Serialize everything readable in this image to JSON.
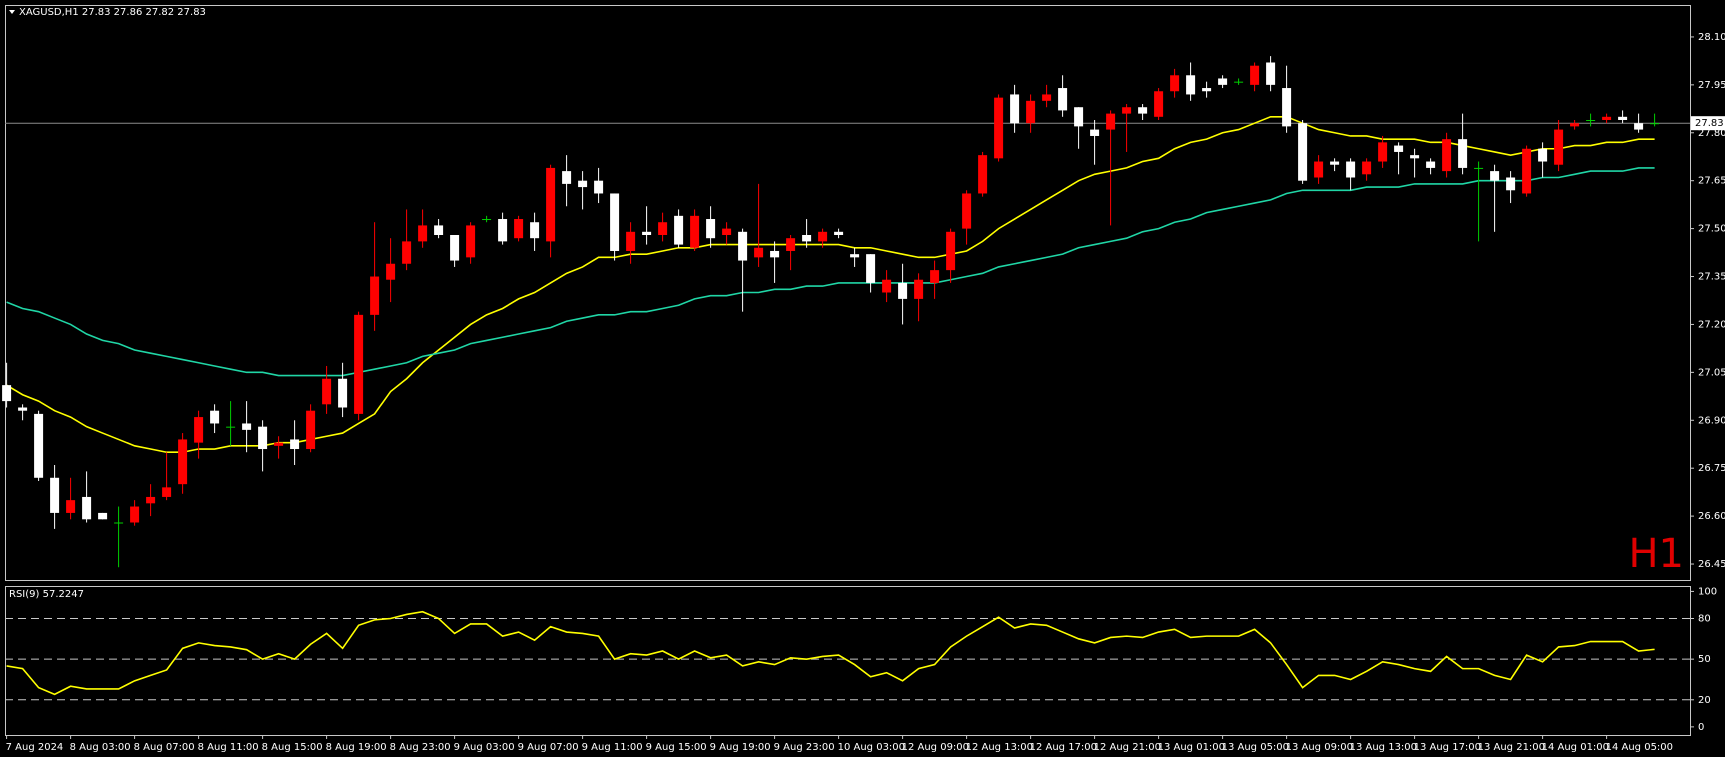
{
  "chart_data": [
    {
      "type": "candlestick",
      "title": "XAGUSD,H1  27.83 27.86 27.82 27.83",
      "annotation": "H1",
      "categories": [
        "7 Aug 2024",
        null,
        null,
        null,
        "8 Aug 03:00",
        null,
        null,
        null,
        "8 Aug 07:00",
        null,
        null,
        null,
        "8 Aug 11:00",
        null,
        null,
        null,
        "8 Aug 15:00",
        null,
        null,
        null,
        "8 Aug 19:00",
        null,
        null,
        null,
        "8 Aug 23:00",
        null,
        null,
        null,
        "9 Aug 03:00",
        null,
        null,
        null,
        "9 Aug 07:00",
        null,
        null,
        null,
        "9 Aug 11:00",
        null,
        null,
        null,
        "9 Aug 15:00",
        null,
        null,
        null,
        "9 Aug 19:00",
        null,
        null,
        null,
        "9 Aug 23:00",
        null,
        null,
        null,
        "10 Aug 03:00",
        null,
        null,
        null,
        "12 Aug 09:00",
        null,
        null,
        null,
        "12 Aug 13:00",
        null,
        null,
        null,
        "12 Aug 17:00",
        null,
        null,
        null,
        "12 Aug 21:00",
        null,
        null,
        null,
        "13 Aug 01:00",
        null,
        null,
        null,
        "13 Aug 05:00",
        null,
        null,
        null,
        "13 Aug 09:00",
        null,
        null,
        null,
        "13 Aug 13:00",
        null,
        null,
        null,
        "13 Aug 17:00",
        null,
        null,
        null,
        "13 Aug 21:00",
        null,
        null,
        null,
        "14 Aug 01:00",
        null,
        null,
        null,
        "14 Aug 05:00",
        null,
        null,
        null
      ],
      "open": [
        27.01,
        26.94,
        26.92,
        26.72,
        26.61,
        26.66,
        26.61,
        26.58,
        26.58,
        26.64,
        26.66,
        26.7,
        26.83,
        26.93,
        26.88,
        26.89,
        26.88,
        26.82,
        26.84,
        26.81,
        26.95,
        27.03,
        26.92,
        27.23,
        27.34,
        27.39,
        27.46,
        27.51,
        27.48,
        27.41,
        27.53,
        27.53,
        27.47,
        27.52,
        27.46,
        27.68,
        27.65,
        27.65,
        27.61,
        27.43,
        27.49,
        27.48,
        27.54,
        27.44,
        27.53,
        27.48,
        27.49,
        27.41,
        27.43,
        27.43,
        27.48,
        27.46,
        27.49,
        27.42,
        27.42,
        27.3,
        27.33,
        27.28,
        27.33,
        27.37,
        27.5,
        27.61,
        27.72,
        27.92,
        27.83,
        27.9,
        27.94,
        27.88,
        27.81,
        27.81,
        27.86,
        27.88,
        27.85,
        27.93,
        27.98,
        27.94,
        27.97,
        27.96,
        27.95,
        28.02,
        27.94,
        27.83,
        27.66,
        27.71,
        27.71,
        27.67,
        27.71,
        27.76,
        27.73,
        27.71,
        27.68,
        27.78,
        27.69,
        27.68,
        27.66,
        27.61,
        27.75,
        27.7,
        27.82,
        27.84,
        27.84,
        27.85,
        27.83,
        27.83
      ],
      "high": [
        27.08,
        26.95,
        26.93,
        26.76,
        26.72,
        26.74,
        26.61,
        26.63,
        26.65,
        26.7,
        26.8,
        26.86,
        26.93,
        26.95,
        26.96,
        26.96,
        26.9,
        26.85,
        26.9,
        26.95,
        27.07,
        27.08,
        27.24,
        27.52,
        27.47,
        27.56,
        27.56,
        27.53,
        27.48,
        27.52,
        27.54,
        27.55,
        27.54,
        27.55,
        27.7,
        27.73,
        27.68,
        27.69,
        27.61,
        27.52,
        27.57,
        27.55,
        27.56,
        27.56,
        27.57,
        27.52,
        27.5,
        27.64,
        27.46,
        27.48,
        27.53,
        27.5,
        27.5,
        27.44,
        27.42,
        27.37,
        27.39,
        27.36,
        27.4,
        27.5,
        27.62,
        27.74,
        27.92,
        27.95,
        27.92,
        27.95,
        27.98,
        27.88,
        27.84,
        27.87,
        27.89,
        27.89,
        27.94,
        28.0,
        28.02,
        27.96,
        27.98,
        27.97,
        28.02,
        28.04,
        28.01,
        27.84,
        27.73,
        27.72,
        27.72,
        27.72,
        27.79,
        27.77,
        27.75,
        27.72,
        27.8,
        27.86,
        27.71,
        27.7,
        27.68,
        27.76,
        27.77,
        27.84,
        27.84,
        27.86,
        27.86,
        27.87,
        27.86,
        27.86
      ],
      "low": [
        26.94,
        26.9,
        26.71,
        26.56,
        26.59,
        26.58,
        26.59,
        26.44,
        26.57,
        26.6,
        26.65,
        26.67,
        26.78,
        26.86,
        26.82,
        26.8,
        26.74,
        26.78,
        26.76,
        26.8,
        26.92,
        26.91,
        26.9,
        27.18,
        27.27,
        27.37,
        27.44,
        27.47,
        27.38,
        27.39,
        27.52,
        27.45,
        27.46,
        27.43,
        27.41,
        27.57,
        27.56,
        27.58,
        27.4,
        27.39,
        27.45,
        27.46,
        27.44,
        27.43,
        27.44,
        27.45,
        27.24,
        27.38,
        27.33,
        27.37,
        27.44,
        27.44,
        27.47,
        27.38,
        27.3,
        27.27,
        27.2,
        27.21,
        27.28,
        27.33,
        27.45,
        27.6,
        27.71,
        27.8,
        27.8,
        27.88,
        27.85,
        27.75,
        27.7,
        27.51,
        27.74,
        27.84,
        27.84,
        27.91,
        27.9,
        27.91,
        27.94,
        27.95,
        27.93,
        27.93,
        27.8,
        27.64,
        27.64,
        27.68,
        27.62,
        27.65,
        27.69,
        27.67,
        27.66,
        27.67,
        27.66,
        27.67,
        27.46,
        27.49,
        27.58,
        27.6,
        27.66,
        27.68,
        27.81,
        27.82,
        27.83,
        27.83,
        27.8,
        27.82
      ],
      "close": [
        26.96,
        26.93,
        26.72,
        26.61,
        26.65,
        26.59,
        26.59,
        26.58,
        26.63,
        26.66,
        26.69,
        26.84,
        26.91,
        26.89,
        26.88,
        26.87,
        26.81,
        26.83,
        26.81,
        26.93,
        27.03,
        26.94,
        27.23,
        27.35,
        27.39,
        27.46,
        27.51,
        27.48,
        27.4,
        27.51,
        27.53,
        27.46,
        27.53,
        27.47,
        27.69,
        27.64,
        27.63,
        27.61,
        27.43,
        27.49,
        27.48,
        27.52,
        27.45,
        27.54,
        27.47,
        27.5,
        27.4,
        27.44,
        27.41,
        27.47,
        27.46,
        27.49,
        27.48,
        27.41,
        27.33,
        27.34,
        27.28,
        27.34,
        27.37,
        27.49,
        27.61,
        27.73,
        27.91,
        27.83,
        27.9,
        27.92,
        27.87,
        27.82,
        27.79,
        27.86,
        27.88,
        27.86,
        27.93,
        27.98,
        27.92,
        27.93,
        27.95,
        27.96,
        28.01,
        27.95,
        27.82,
        27.65,
        27.71,
        27.7,
        27.66,
        27.71,
        27.77,
        27.74,
        27.72,
        27.69,
        27.78,
        27.69,
        27.69,
        27.65,
        27.62,
        27.75,
        27.71,
        27.81,
        27.83,
        27.84,
        27.85,
        27.84,
        27.81,
        27.83
      ],
      "up_color": "#ff0000",
      "down_color": "#ffffff",
      "doji_color": "#00d000",
      "overlays": [
        {
          "color": "#ffff00",
          "values": [
            27.01,
            26.98,
            26.96,
            26.93,
            26.91,
            26.88,
            26.86,
            26.84,
            26.82,
            26.81,
            26.8,
            26.8,
            26.81,
            26.81,
            26.82,
            26.82,
            26.82,
            26.83,
            26.83,
            26.84,
            26.85,
            26.86,
            26.89,
            26.92,
            26.99,
            27.03,
            27.08,
            27.12,
            27.16,
            27.2,
            27.23,
            27.25,
            27.28,
            27.3,
            27.33,
            27.36,
            27.38,
            27.41,
            27.41,
            27.42,
            27.42,
            27.43,
            27.44,
            27.44,
            27.45,
            27.45,
            27.45,
            27.45,
            27.45,
            27.45,
            27.45,
            27.45,
            27.45,
            27.44,
            27.44,
            27.43,
            27.42,
            27.41,
            27.41,
            27.42,
            27.43,
            27.46,
            27.5,
            27.53,
            27.56,
            27.59,
            27.62,
            27.65,
            27.67,
            27.68,
            27.69,
            27.71,
            27.72,
            27.75,
            27.77,
            27.78,
            27.8,
            27.81,
            27.83,
            27.85,
            27.85,
            27.83,
            27.81,
            27.8,
            27.79,
            27.79,
            27.78,
            27.78,
            27.78,
            27.77,
            27.77,
            27.76,
            27.75,
            27.74,
            27.73,
            27.74,
            27.75,
            27.75,
            27.76,
            27.76,
            27.77,
            27.77,
            27.78,
            27.78
          ]
        },
        {
          "color": "#20d6a6",
          "values": [
            27.27,
            27.25,
            27.24,
            27.22,
            27.2,
            27.17,
            27.15,
            27.14,
            27.12,
            27.11,
            27.1,
            27.09,
            27.08,
            27.07,
            27.06,
            27.05,
            27.05,
            27.04,
            27.04,
            27.04,
            27.04,
            27.04,
            27.05,
            27.06,
            27.07,
            27.08,
            27.1,
            27.11,
            27.12,
            27.14,
            27.15,
            27.16,
            27.17,
            27.18,
            27.19,
            27.21,
            27.22,
            27.23,
            27.23,
            27.24,
            27.24,
            27.25,
            27.26,
            27.28,
            27.29,
            27.29,
            27.3,
            27.3,
            27.31,
            27.31,
            27.32,
            27.32,
            27.33,
            27.33,
            27.33,
            27.33,
            27.33,
            27.33,
            27.33,
            27.34,
            27.35,
            27.36,
            27.38,
            27.39,
            27.4,
            27.41,
            27.42,
            27.44,
            27.45,
            27.46,
            27.47,
            27.49,
            27.5,
            27.52,
            27.53,
            27.55,
            27.56,
            27.57,
            27.58,
            27.59,
            27.61,
            27.62,
            27.62,
            27.62,
            27.62,
            27.63,
            27.63,
            27.63,
            27.64,
            27.64,
            27.64,
            27.64,
            27.65,
            27.65,
            27.65,
            27.65,
            27.66,
            27.66,
            27.67,
            27.68,
            27.68,
            27.68,
            27.69,
            27.69
          ]
        }
      ],
      "last_price": 27.83,
      "ylim": [
        26.4,
        28.2
      ],
      "yticks": [
        {
          "value": 28.1,
          "label": "28.10"
        },
        27.95,
        {
          "value": 27.8,
          "label": "27.80"
        },
        27.65,
        {
          "value": 27.5,
          "label": "27.50"
        },
        27.35,
        {
          "value": 27.2,
          "label": "27.20"
        },
        27.05,
        {
          "value": 26.9,
          "label": "26.90"
        },
        26.75,
        {
          "value": 26.6,
          "label": "26.60"
        },
        26.45
      ]
    },
    {
      "type": "line",
      "title": "RSI(9) 57.2247",
      "color": "#ffff00",
      "values": [
        45,
        43,
        29,
        24,
        30,
        28,
        28,
        28,
        34,
        38,
        42,
        58,
        62,
        60,
        59,
        57,
        50,
        54,
        50,
        61,
        69,
        58,
        75,
        79,
        80,
        83,
        85,
        80,
        69,
        76,
        76,
        67,
        70,
        64,
        74,
        70,
        69,
        67,
        50,
        54,
        53,
        56,
        50,
        56,
        51,
        53,
        45,
        48,
        46,
        51,
        50,
        52,
        53,
        46,
        37,
        40,
        34,
        43,
        46,
        59,
        67,
        74,
        81,
        73,
        76,
        75,
        70,
        65,
        62,
        66,
        67,
        66,
        70,
        72,
        66,
        67,
        67,
        67,
        72,
        62,
        46,
        29,
        38,
        38,
        35,
        41,
        48,
        46,
        43,
        41,
        52,
        43,
        43,
        38,
        35,
        53,
        48,
        59,
        60,
        63,
        63,
        63,
        56,
        57.2247
      ],
      "levels": [
        80,
        50,
        20
      ],
      "ylim": [
        -6,
        104
      ],
      "yticks": [
        100,
        80,
        50,
        20,
        0
      ]
    }
  ]
}
